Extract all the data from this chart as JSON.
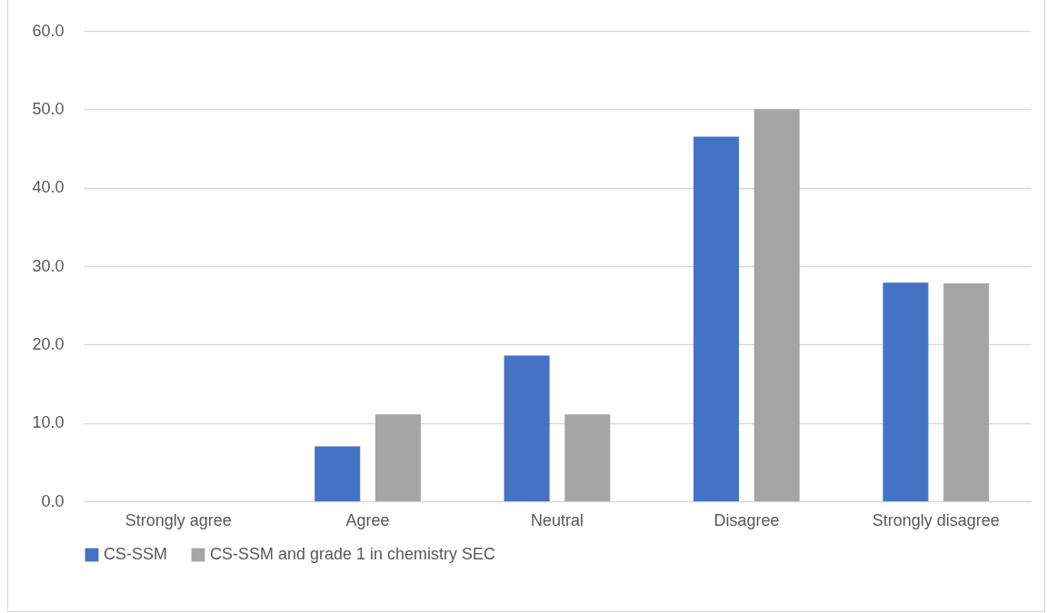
{
  "chart_data": {
    "type": "bar",
    "categories": [
      "Strongly agree",
      "Agree",
      "Neutral",
      "Disagree",
      "Strongly disagree"
    ],
    "series": [
      {
        "name": "CS-SSM",
        "color": "#4472c4",
        "values": [
          0,
          7.0,
          18.6,
          46.5,
          27.9
        ]
      },
      {
        "name": "CS-SSM and grade 1 in chemistry SEC",
        "color": "#a5a5a5",
        "values": [
          0,
          11.1,
          11.1,
          50.0,
          27.8
        ]
      }
    ],
    "ylim": [
      0,
      60
    ],
    "yticks": [
      {
        "value": 0,
        "label": "0.0"
      },
      {
        "value": 10,
        "label": "10.0"
      },
      {
        "value": 20,
        "label": "20.0"
      },
      {
        "value": 30,
        "label": "30.0"
      },
      {
        "value": 40,
        "label": "40.0"
      },
      {
        "value": 50,
        "label": "50.0"
      },
      {
        "value": 60,
        "label": "60.0"
      }
    ],
    "grid": "y",
    "legend": "bottom"
  }
}
